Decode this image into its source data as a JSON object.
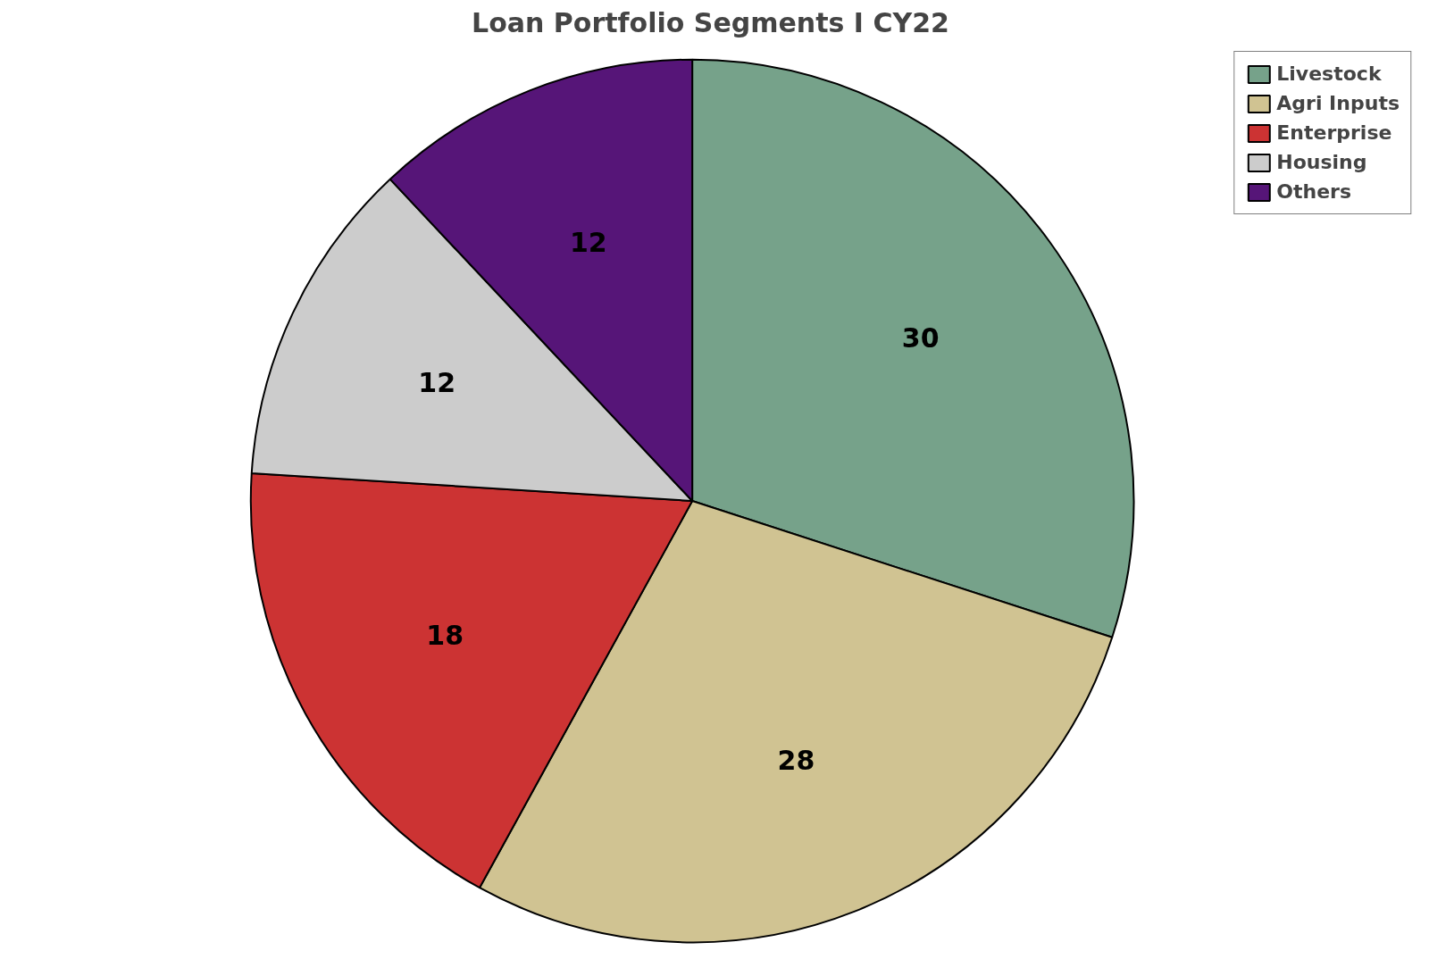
{
  "chart_data": {
    "type": "pie",
    "title": "Loan Portfolio Segments I CY22",
    "categories": [
      "Livestock",
      "Agri Inputs",
      "Enterprise",
      "Housing",
      "Others"
    ],
    "values": [
      30,
      28,
      18,
      12,
      12
    ],
    "colors": [
      "#76a28a",
      "#d0c392",
      "#cc3333",
      "#cccccc",
      "#561578"
    ],
    "data_labels": true,
    "legend": "top right"
  }
}
